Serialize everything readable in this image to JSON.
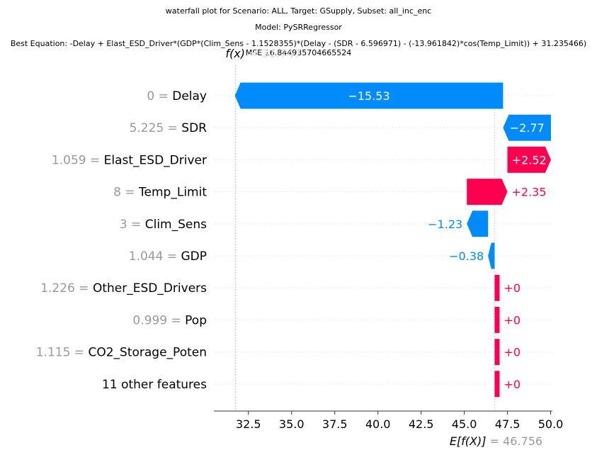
{
  "titles": {
    "line1": "waterfall plot for Scenario: ALL, Target: GSupply, Subset: all_inc_enc",
    "line2": "Model: PySRRegressor",
    "line3": "Best Equation: -Delay + Elast_ESD_Driver*(GDP*(Clim_Sens - 1.1528355)*(Delay - (SDR - 6.596971) - (-13.961842)*cos(Temp_Limit)) + 31.235466)",
    "line4": "MSE 16.844935704665524"
  },
  "chart_data": {
    "type": "waterfall",
    "fx_label": "f(x)",
    "fx_value": "31.747",
    "fx": 31.747,
    "base_label": "E[f(X)]",
    "base_value_text": "= 46.756",
    "base": 46.756,
    "xlim": [
      30.5,
      50.1
    ],
    "xticks": [
      32.5,
      35.0,
      37.5,
      40.0,
      42.5,
      45.0,
      47.5,
      50.0
    ],
    "xtick_labels": [
      "32.5",
      "35.0",
      "37.5",
      "40.0",
      "42.5",
      "45.0",
      "47.5",
      "50.0"
    ],
    "colors": {
      "positive": "#ff0051",
      "negative": "#008bfb",
      "value_gray": "#999999"
    },
    "features": [
      {
        "value": "0",
        "name": "Delay",
        "contribution": -15.53,
        "label": "−15.53"
      },
      {
        "value": "5.225",
        "name": "SDR",
        "contribution": -2.77,
        "label": "−2.77"
      },
      {
        "value": "1.059",
        "name": "Elast_ESD_Driver",
        "contribution": 2.52,
        "label": "+2.52"
      },
      {
        "value": "8",
        "name": "Temp_Limit",
        "contribution": 2.35,
        "label": "+2.35"
      },
      {
        "value": "3",
        "name": "Clim_Sens",
        "contribution": -1.23,
        "label": "−1.23"
      },
      {
        "value": "1.044",
        "name": "GDP",
        "contribution": -0.38,
        "label": "−0.38"
      },
      {
        "value": "1.226",
        "name": "Other_ESD_Drivers",
        "contribution": 0,
        "label": "+0"
      },
      {
        "value": "0.999",
        "name": "Pop",
        "contribution": 0,
        "label": "+0"
      },
      {
        "value": "1.115",
        "name": "CO2_Storage_Poten",
        "contribution": 0,
        "label": "+0"
      },
      {
        "value": "",
        "name": "11 other features",
        "contribution": 0,
        "label": "+0"
      }
    ]
  }
}
